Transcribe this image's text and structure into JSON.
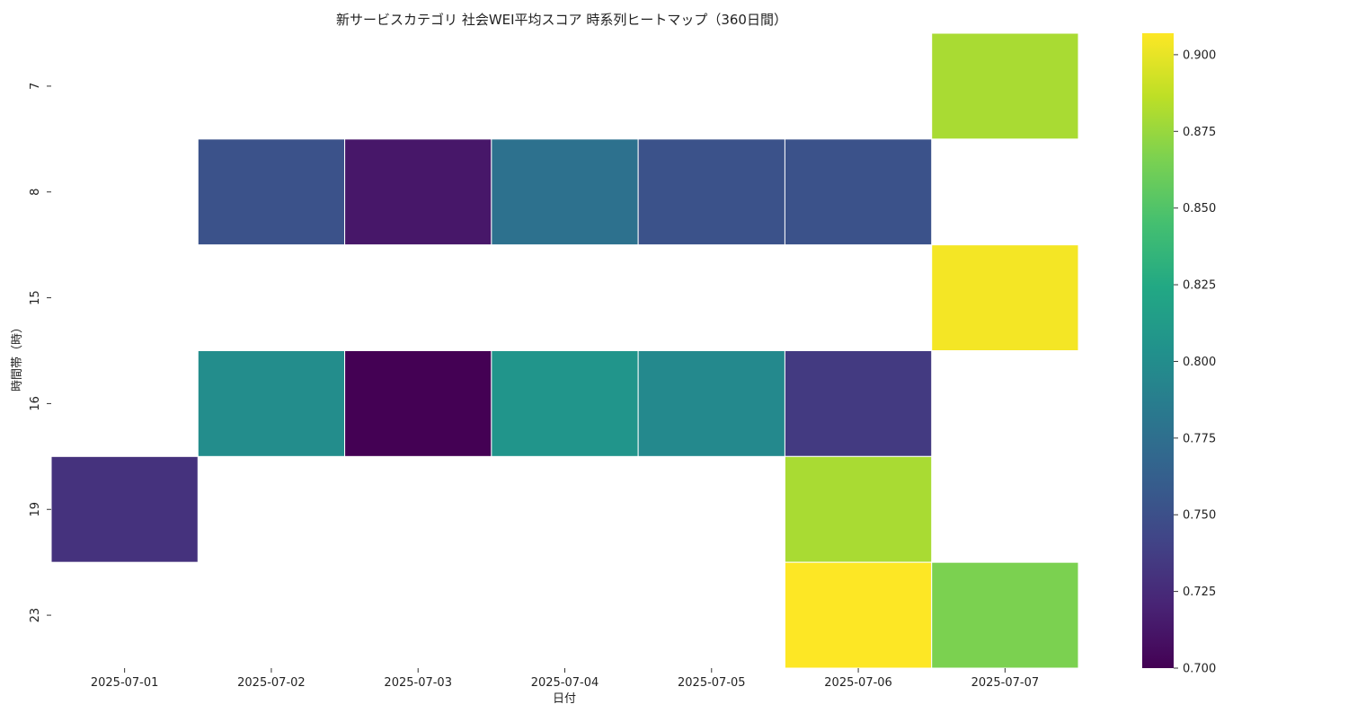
{
  "chart_data": {
    "type": "heatmap",
    "title": "新サービスカテゴリ 社会WEI平均スコア 時系列ヒートマップ（360日間）",
    "xlabel": "日付",
    "ylabel": "時間帯（時）",
    "x_categories": [
      "2025-07-01",
      "2025-07-02",
      "2025-07-03",
      "2025-07-04",
      "2025-07-05",
      "2025-07-06",
      "2025-07-07"
    ],
    "y_categories": [
      "7",
      "8",
      "15",
      "16",
      "19",
      "23"
    ],
    "values": [
      [
        null,
        null,
        null,
        null,
        null,
        null,
        0.88
      ],
      [
        null,
        0.752,
        0.713,
        0.777,
        0.752,
        0.752,
        null
      ],
      [
        null,
        null,
        null,
        null,
        null,
        null,
        0.904
      ],
      [
        null,
        0.8,
        0.7,
        0.807,
        0.797,
        0.735,
        null
      ],
      [
        0.73,
        null,
        null,
        null,
        null,
        0.88,
        null
      ],
      [
        null,
        null,
        null,
        null,
        null,
        0.907,
        0.866
      ]
    ],
    "colormap": "viridis",
    "colorbar": {
      "range": [
        0.7,
        0.907
      ],
      "ticks": [
        0.7,
        0.725,
        0.75,
        0.775,
        0.8,
        0.825,
        0.85,
        0.875,
        0.9
      ],
      "tick_labels": [
        "0.700",
        "0.725",
        "0.750",
        "0.775",
        "0.800",
        "0.825",
        "0.850",
        "0.875",
        "0.900"
      ],
      "position": "right"
    },
    "cell_border_color": "#ffffff",
    "missing_color": "#ffffff",
    "grid": false
  }
}
